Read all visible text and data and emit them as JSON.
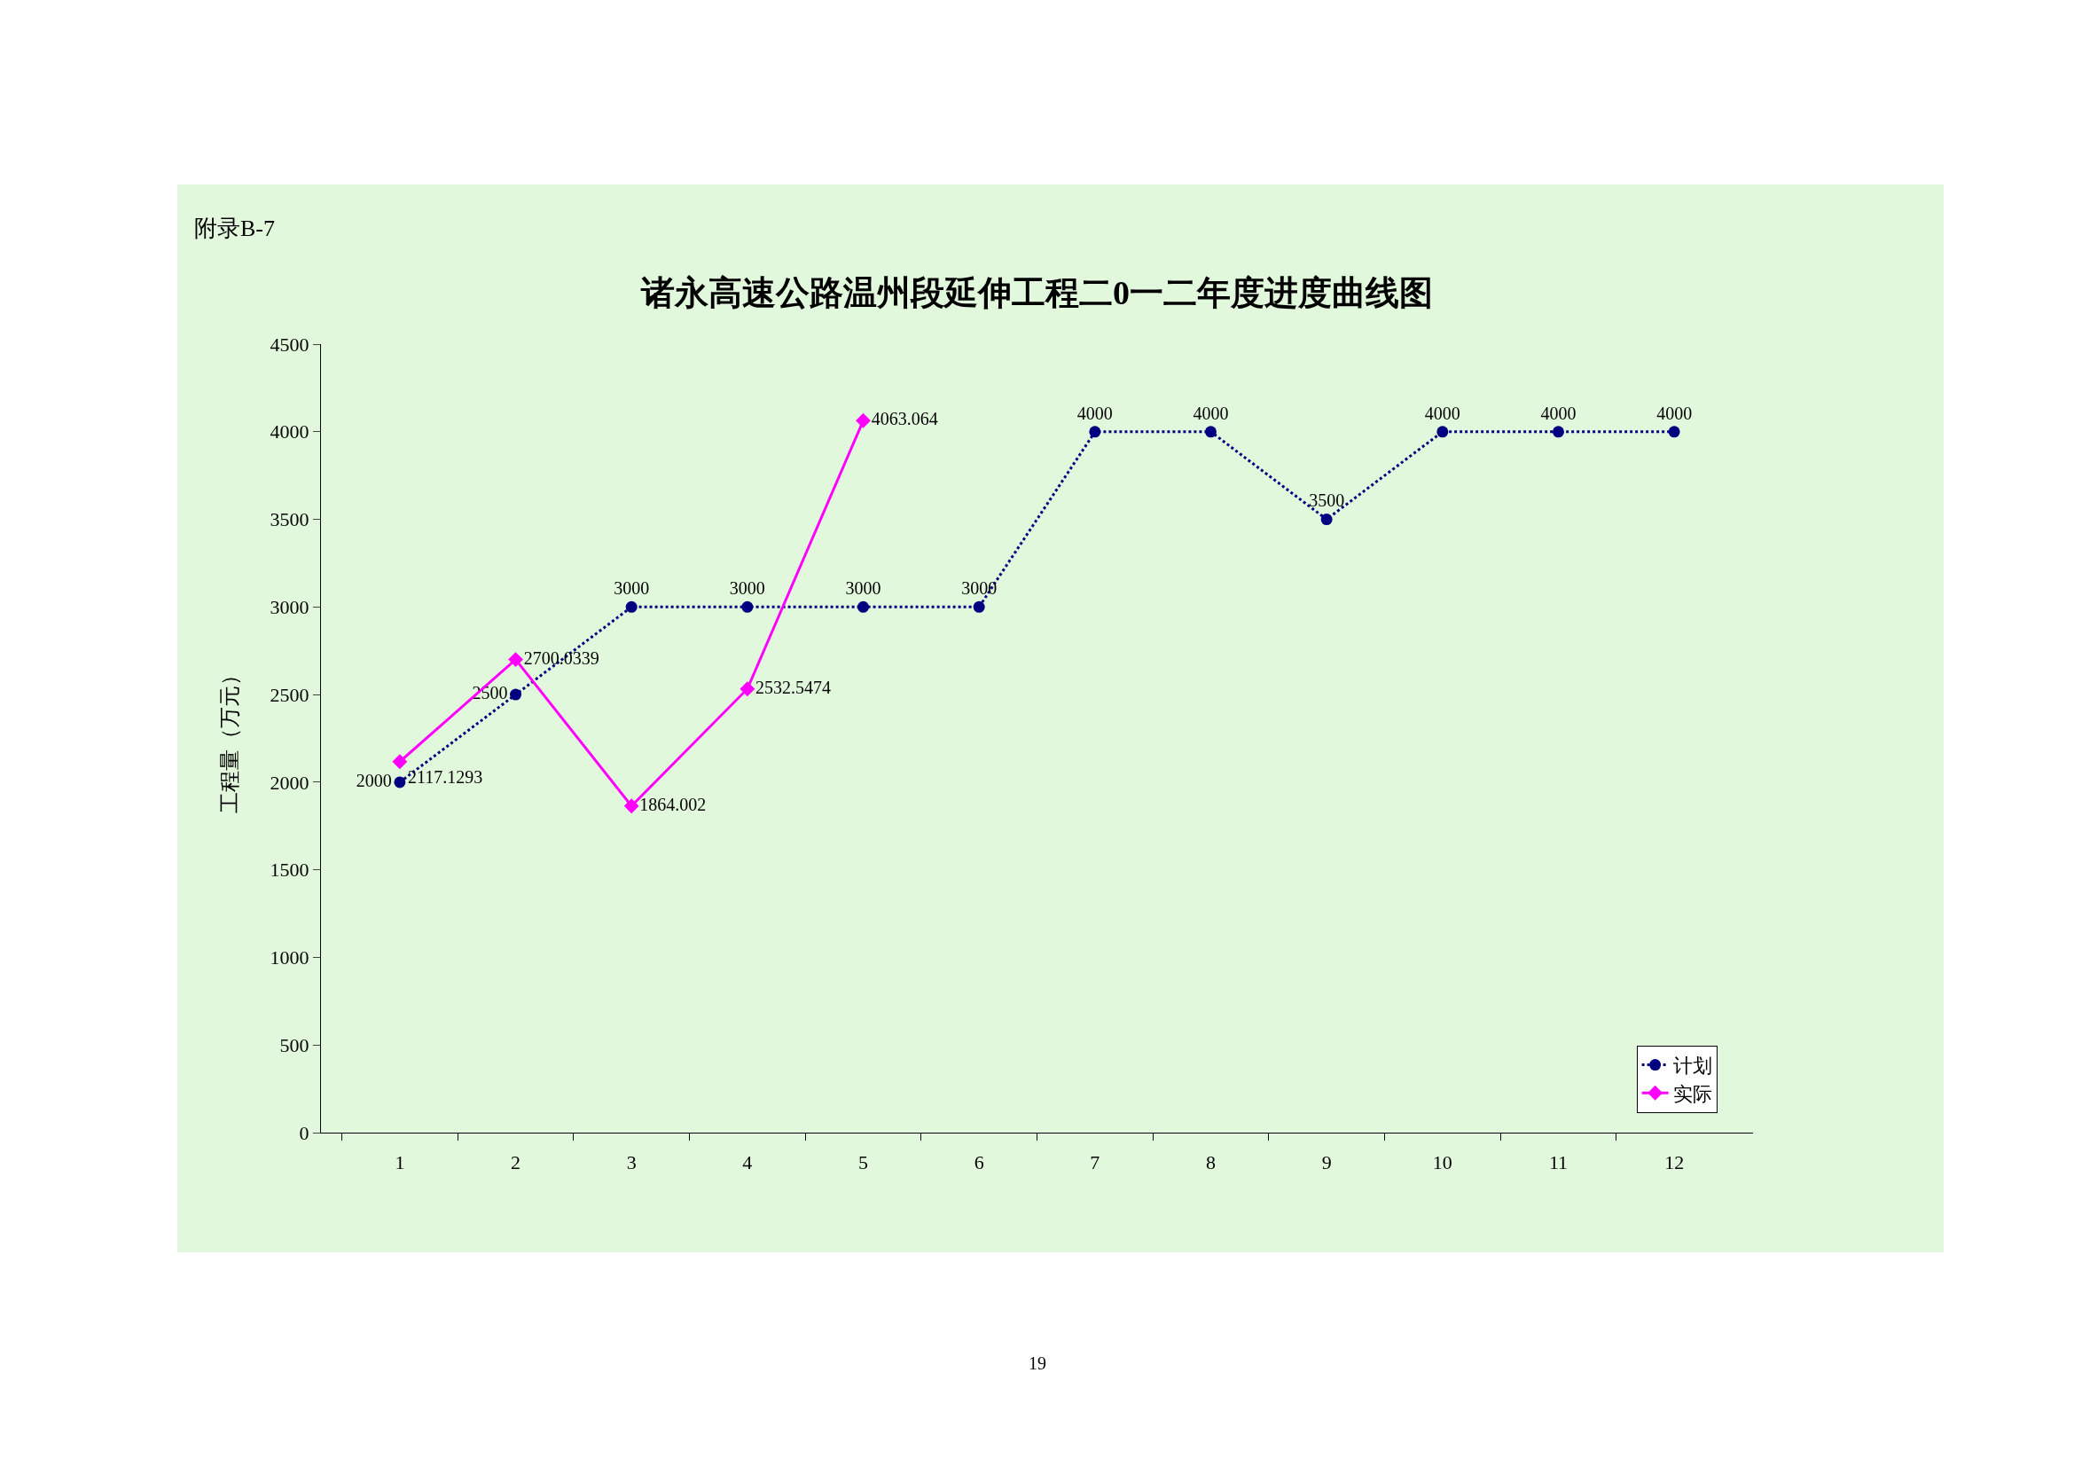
{
  "chart_data": {
    "type": "line",
    "title": "诸永高速公路温州段延伸工程二0一二年度进度曲线图",
    "ylabel": "工程量（万元）",
    "categories": [
      "1",
      "2",
      "3",
      "4",
      "5",
      "6",
      "7",
      "8",
      "9",
      "10",
      "11",
      "12"
    ],
    "series": [
      {
        "name": "计划",
        "color": "#000080",
        "marker": "circle",
        "line_style": "dotted",
        "values": [
          2000,
          2500,
          3000,
          3000,
          3000,
          3000,
          4000,
          4000,
          3500,
          4000,
          4000,
          4000
        ]
      },
      {
        "name": "实际",
        "color": "#ff00ff",
        "marker": "diamond",
        "line_style": "solid",
        "values": [
          2117.1293,
          2700.0339,
          1864.002,
          2532.5474,
          4063.064,
          null,
          null,
          null,
          null,
          null,
          null,
          null
        ]
      }
    ],
    "ylim": [
      0,
      4500
    ],
    "yticks": [
      0,
      500,
      1000,
      1500,
      2000,
      2500,
      3000,
      3500,
      4000,
      4500
    ],
    "grid": false,
    "legend": "bottom right",
    "data_labels": true,
    "annotations": [
      "附录B-7",
      "19"
    ]
  }
}
